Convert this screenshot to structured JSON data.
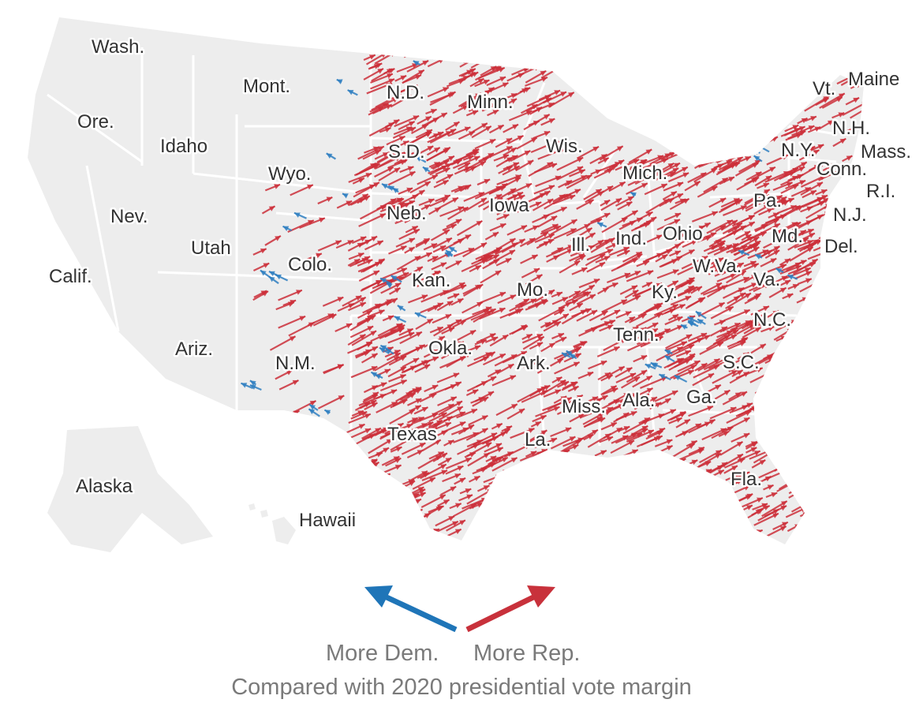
{
  "map": {
    "land_color": "#ededed",
    "border_color": "#ffffff",
    "rep_color": "#cc2f3a",
    "dem_color": "#2f7fc1",
    "shift_density": {
      "rep": "high",
      "dem": "low"
    },
    "state_labels": [
      "Wash.",
      "Mont.",
      "N.D.",
      "Minn.",
      "Vt.",
      "Maine",
      "Ore.",
      "Idaho",
      "S.D.",
      "Wis.",
      "N.H.",
      "N.Y.",
      "Mass.",
      "Wyo.",
      "Mich.",
      "Conn.",
      "R.I.",
      "Nev.",
      "Iowa",
      "Neb.",
      "Pa.",
      "N.J.",
      "Utah",
      "Ill.",
      "Ind.",
      "Ohio",
      "Md.",
      "Del.",
      "Colo.",
      "W.Va.",
      "Calif.",
      "Kan.",
      "Va.",
      "Mo.",
      "Ky.",
      "N.C.",
      "Tenn.",
      "Ariz.",
      "Okla.",
      "Ark.",
      "S.C.",
      "N.M.",
      "Ala.",
      "Ga.",
      "Miss.",
      "Texas",
      "La.",
      "Fla.",
      "Alaska",
      "Hawaii"
    ]
  },
  "legend": {
    "dem_label": "More Dem.",
    "rep_label": "More Rep.",
    "note": "Compared with 2020 presidential vote margin",
    "dem_color": "#1f75b8",
    "rep_color": "#c8313b"
  }
}
